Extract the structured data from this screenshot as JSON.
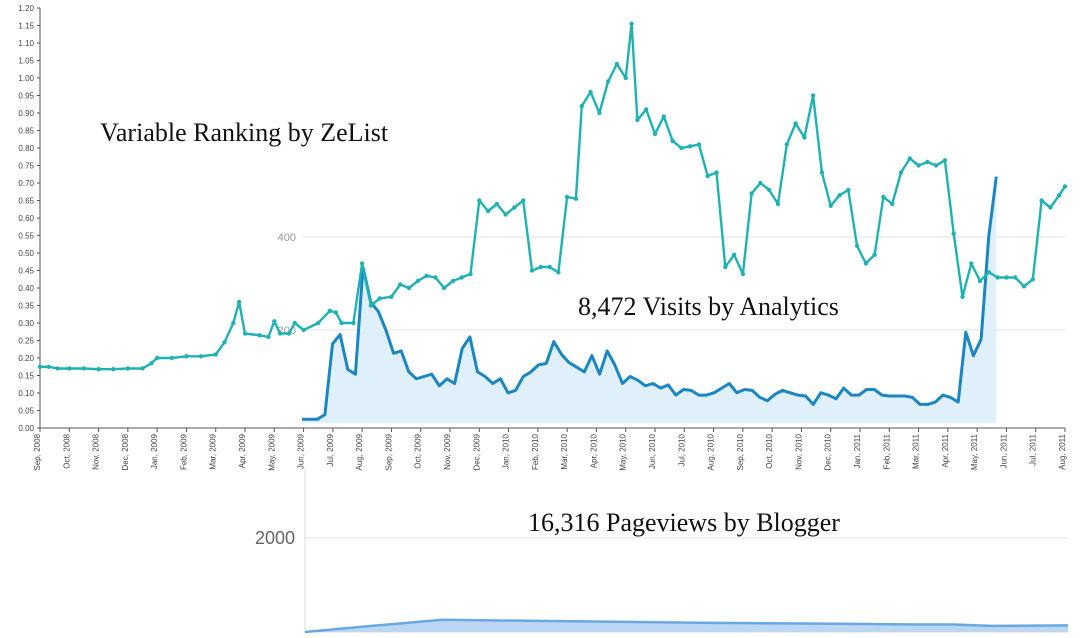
{
  "colors": {
    "ranking": "#20b2b2",
    "visits": "#1a86c2",
    "visits_fill": "#dff0fa",
    "pageviews": "#6aa8e0",
    "pageviews_fill": "#bcd7f4",
    "axis": "#555555",
    "grid": "#e3e3e3"
  },
  "chart_data": [
    {
      "type": "line",
      "title": "Variable Ranking by ZeList",
      "ylim": [
        0,
        1.2
      ],
      "yticks": [
        "0.00",
        "0.05",
        "0.10",
        "0.15",
        "0.20",
        "0.25",
        "0.30",
        "0.35",
        "0.40",
        "0.45",
        "0.50",
        "0.55",
        "0.60",
        "0.65",
        "0.70",
        "0.75",
        "0.80",
        "0.85",
        "0.90",
        "0.95",
        "1.00",
        "1.05",
        "1.10",
        "1.15",
        "1.20"
      ],
      "xticks": [
        "Sep, 2008",
        "Oct, 2008",
        "Nov, 2008",
        "Dec, 2008",
        "Jan, 2009",
        "Feb, 2009",
        "Mar, 2009",
        "Apr, 2009",
        "May, 2009",
        "Jun, 2009",
        "Jul, 2009",
        "Aug, 2009",
        "Sep, 2009",
        "Oct, 2009",
        "Nov, 2009",
        "Dec, 2009",
        "Jan, 2010",
        "Feb, 2010",
        "Mar, 2010",
        "Apr, 2010",
        "May, 2010",
        "Jun, 2010",
        "Jul, 2010",
        "Aug, 2010",
        "Sep, 2010",
        "Oct, 2010",
        "Nov, 2010",
        "Dec, 2010",
        "Jan, 2011",
        "Feb, 2011",
        "Mar, 2011",
        "Apr, 2011",
        "May, 2011",
        "Jun, 2011",
        "Jul, 2011",
        "Aug, 2011"
      ],
      "xlim": [
        0,
        35
      ],
      "series": [
        {
          "values": [
            [
              0,
              0.175
            ],
            [
              0.3,
              0.175
            ],
            [
              0.6,
              0.17
            ],
            [
              1,
              0.17
            ],
            [
              1.5,
              0.17
            ],
            [
              2,
              0.168
            ],
            [
              2.5,
              0.168
            ],
            [
              3,
              0.17
            ],
            [
              3.5,
              0.17
            ],
            [
              3.8,
              0.185
            ],
            [
              4,
              0.2
            ],
            [
              4.5,
              0.2
            ],
            [
              5,
              0.205
            ],
            [
              5.5,
              0.205
            ],
            [
              6,
              0.21
            ],
            [
              6.3,
              0.245
            ],
            [
              6.6,
              0.3
            ],
            [
              6.8,
              0.36
            ],
            [
              7,
              0.27
            ],
            [
              7.5,
              0.265
            ],
            [
              7.8,
              0.26
            ],
            [
              8,
              0.305
            ],
            [
              8.2,
              0.27
            ],
            [
              8.5,
              0.27
            ],
            [
              8.7,
              0.3
            ],
            [
              9,
              0.28
            ],
            [
              9.5,
              0.3
            ],
            [
              9.9,
              0.335
            ],
            [
              10.1,
              0.33
            ],
            [
              10.3,
              0.3
            ],
            [
              10.7,
              0.3
            ],
            [
              11,
              0.47
            ],
            [
              11.3,
              0.35
            ],
            [
              11.6,
              0.37
            ],
            [
              12,
              0.375
            ],
            [
              12.3,
              0.41
            ],
            [
              12.6,
              0.4
            ],
            [
              12.9,
              0.42
            ],
            [
              13.2,
              0.435
            ],
            [
              13.5,
              0.43
            ],
            [
              13.8,
              0.4
            ],
            [
              14.1,
              0.42
            ],
            [
              14.4,
              0.43
            ],
            [
              14.7,
              0.44
            ],
            [
              15,
              0.65
            ],
            [
              15.3,
              0.62
            ],
            [
              15.6,
              0.64
            ],
            [
              15.9,
              0.61
            ],
            [
              16.2,
              0.63
            ],
            [
              16.5,
              0.65
            ],
            [
              16.8,
              0.45
            ],
            [
              17.1,
              0.46
            ],
            [
              17.4,
              0.46
            ],
            [
              17.7,
              0.445
            ],
            [
              18,
              0.66
            ],
            [
              18.3,
              0.655
            ],
            [
              18.5,
              0.92
            ],
            [
              18.8,
              0.96
            ],
            [
              19.1,
              0.9
            ],
            [
              19.4,
              0.99
            ],
            [
              19.7,
              1.04
            ],
            [
              20,
              1.0
            ],
            [
              20.2,
              1.155
            ],
            [
              20.4,
              0.88
            ],
            [
              20.7,
              0.91
            ],
            [
              21,
              0.84
            ],
            [
              21.3,
              0.89
            ],
            [
              21.6,
              0.82
            ],
            [
              21.9,
              0.8
            ],
            [
              22.2,
              0.805
            ],
            [
              22.5,
              0.81
            ],
            [
              22.8,
              0.72
            ],
            [
              23.1,
              0.73
            ],
            [
              23.4,
              0.46
            ],
            [
              23.7,
              0.495
            ],
            [
              24,
              0.44
            ],
            [
              24.3,
              0.67
            ],
            [
              24.6,
              0.7
            ],
            [
              24.9,
              0.68
            ],
            [
              25.2,
              0.64
            ],
            [
              25.5,
              0.81
            ],
            [
              25.8,
              0.87
            ],
            [
              26.1,
              0.83
            ],
            [
              26.4,
              0.95
            ],
            [
              26.7,
              0.73
            ],
            [
              27,
              0.635
            ],
            [
              27.3,
              0.665
            ],
            [
              27.6,
              0.68
            ],
            [
              27.9,
              0.52
            ],
            [
              28.2,
              0.47
            ],
            [
              28.5,
              0.495
            ],
            [
              28.8,
              0.66
            ],
            [
              29.1,
              0.64
            ],
            [
              29.4,
              0.73
            ],
            [
              29.7,
              0.77
            ],
            [
              30,
              0.75
            ],
            [
              30.3,
              0.76
            ],
            [
              30.6,
              0.75
            ],
            [
              30.9,
              0.765
            ],
            [
              31.2,
              0.555
            ],
            [
              31.5,
              0.375
            ],
            [
              31.8,
              0.47
            ],
            [
              32.1,
              0.42
            ],
            [
              32.4,
              0.445
            ],
            [
              32.7,
              0.43
            ],
            [
              33,
              0.43
            ],
            [
              33.3,
              0.43
            ],
            [
              33.6,
              0.405
            ],
            [
              33.9,
              0.425
            ],
            [
              34.2,
              0.65
            ],
            [
              34.5,
              0.63
            ],
            [
              34.8,
              0.665
            ],
            [
              35,
              0.69
            ]
          ]
        }
      ]
    },
    {
      "type": "area",
      "title": "8,472 Visits by Analytics",
      "ylim": [
        0,
        400
      ],
      "yticks": [
        "200",
        "400"
      ],
      "xlim": [
        0,
        100
      ],
      "series": [
        {
          "values": [
            [
              0,
              8
            ],
            [
              2,
              8
            ],
            [
              3,
              18
            ],
            [
              4,
              170
            ],
            [
              5,
              190
            ],
            [
              6,
              115
            ],
            [
              7,
              105
            ],
            [
              8,
              335
            ],
            [
              9,
              260
            ],
            [
              10,
              240
            ],
            [
              11,
              200
            ],
            [
              12,
              150
            ],
            [
              13,
              155
            ],
            [
              14,
              110
            ],
            [
              15,
              95
            ],
            [
              16,
              100
            ],
            [
              17,
              105
            ],
            [
              18,
              80
            ],
            [
              19,
              95
            ],
            [
              20,
              85
            ],
            [
              21,
              160
            ],
            [
              22,
              185
            ],
            [
              23,
              110
            ],
            [
              24,
              100
            ],
            [
              25,
              85
            ],
            [
              26,
              95
            ],
            [
              27,
              65
            ],
            [
              28,
              70
            ],
            [
              29,
              100
            ],
            [
              30,
              110
            ],
            [
              31,
              125
            ],
            [
              32,
              128
            ],
            [
              33,
              175
            ],
            [
              34,
              148
            ],
            [
              35,
              130
            ],
            [
              36,
              120
            ],
            [
              37,
              110
            ],
            [
              38,
              145
            ],
            [
              39,
              105
            ],
            [
              40,
              155
            ],
            [
              41,
              125
            ],
            [
              42,
              85
            ],
            [
              43,
              100
            ],
            [
              44,
              92
            ],
            [
              45,
              80
            ],
            [
              46,
              85
            ],
            [
              47,
              75
            ],
            [
              48,
              82
            ],
            [
              49,
              60
            ],
            [
              50,
              72
            ],
            [
              51,
              70
            ],
            [
              52,
              60
            ],
            [
              53,
              60
            ],
            [
              54,
              65
            ],
            [
              55,
              75
            ],
            [
              56,
              85
            ],
            [
              57,
              65
            ],
            [
              58,
              72
            ],
            [
              59,
              70
            ],
            [
              60,
              55
            ],
            [
              61,
              48
            ],
            [
              62,
              62
            ],
            [
              63,
              70
            ],
            [
              64,
              65
            ],
            [
              65,
              60
            ],
            [
              66,
              58
            ],
            [
              67,
              40
            ],
            [
              68,
              65
            ],
            [
              69,
              60
            ],
            [
              70,
              52
            ],
            [
              71,
              75
            ],
            [
              72,
              60
            ],
            [
              73,
              60
            ],
            [
              74,
              72
            ],
            [
              75,
              72
            ],
            [
              76,
              60
            ],
            [
              77,
              58
            ],
            [
              78,
              58
            ],
            [
              79,
              58
            ],
            [
              80,
              55
            ],
            [
              81,
              40
            ],
            [
              82,
              40
            ],
            [
              83,
              45
            ],
            [
              84,
              60
            ],
            [
              85,
              55
            ],
            [
              86,
              45
            ],
            [
              87,
              195
            ],
            [
              88,
              145
            ],
            [
              89,
              180
            ],
            [
              90,
              400
            ],
            [
              91,
              530
            ]
          ]
        }
      ]
    },
    {
      "type": "area",
      "title": "16,316 Pageviews by Blogger",
      "yticks": [
        "2000"
      ],
      "series": [
        {
          "values": [
            [
              0,
              0
            ],
            [
              8,
              120
            ],
            [
              18,
              260
            ],
            [
              50,
              200
            ],
            [
              70,
              175
            ],
            [
              80,
              160
            ],
            [
              85,
              160
            ],
            [
              90,
              130
            ],
            [
              100,
              140
            ]
          ]
        }
      ]
    }
  ]
}
